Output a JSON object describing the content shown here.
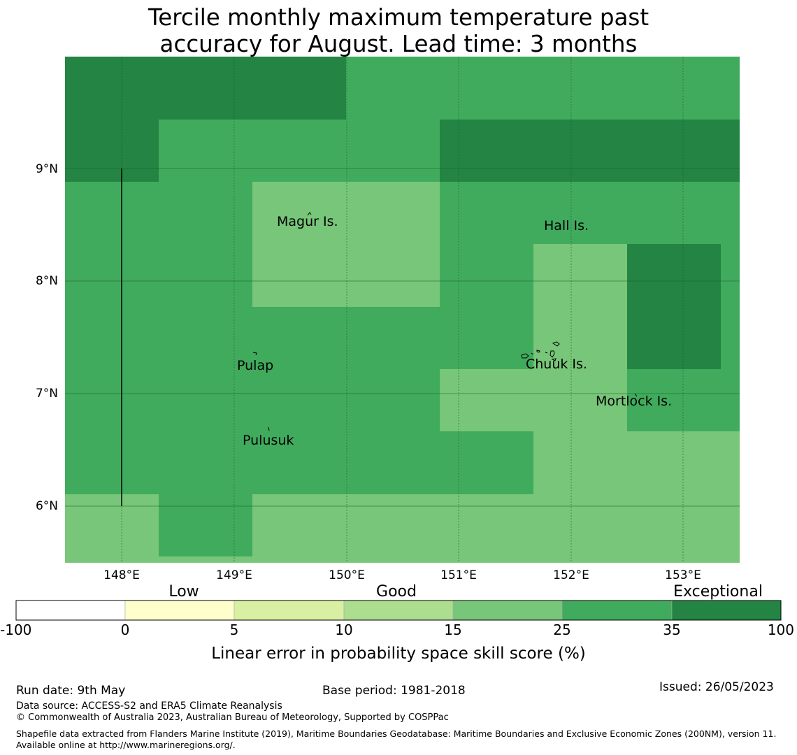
{
  "title": {
    "line1": "Tercile monthly maximum temperature past",
    "line2": "accuracy for August. Lead time: 3 months"
  },
  "map": {
    "lat_ticks": [
      "9°N",
      "8°N",
      "7°N",
      "6°N"
    ],
    "lon_ticks": [
      "148°E",
      "149°E",
      "150°E",
      "151°E",
      "152°E",
      "153°E"
    ],
    "places": [
      {
        "name": "Magur Is."
      },
      {
        "name": "Hall Is."
      },
      {
        "name": "Pulap"
      },
      {
        "name": "Chuuk Is."
      },
      {
        "name": "Mortlock Is."
      },
      {
        "name": "Pulusuk"
      }
    ],
    "colors": {
      "exceptional": "#238443",
      "very_good": "#41ab5d",
      "good": "#78c679",
      "light": "#addd8e"
    }
  },
  "legend": {
    "category_labels": [
      "Low",
      "Good",
      "Exceptional"
    ],
    "boundaries": [
      "-100",
      "0",
      "5",
      "10",
      "15",
      "25",
      "35",
      "100"
    ],
    "colors": [
      "#ffffff",
      "#ffffcc",
      "#d9f0a3",
      "#addd8e",
      "#78c679",
      "#41ab5d",
      "#238443"
    ],
    "label": "Linear error in probability space skill score (%)"
  },
  "footer": {
    "run_date": "Run date: 9th May",
    "base_period": "Base period: 1981-2018",
    "issued": "Issued: 26/05/2023",
    "data_source": "Data source: ACCESS-S2 and ERA5 Climate Reanalysis",
    "copyright": "© Commonwealth of Australia 2023, Australian Bureau of Meteorology, Supported by COSPPac",
    "shapefile": "Shapefile data extracted from Flanders Marine Institute (2019), Maritime Boundaries Geodatabase: Maritime Boundaries and Exclusive Economic Zones (200NM), version 11. Available online at http://www.marineregions.org/."
  }
}
